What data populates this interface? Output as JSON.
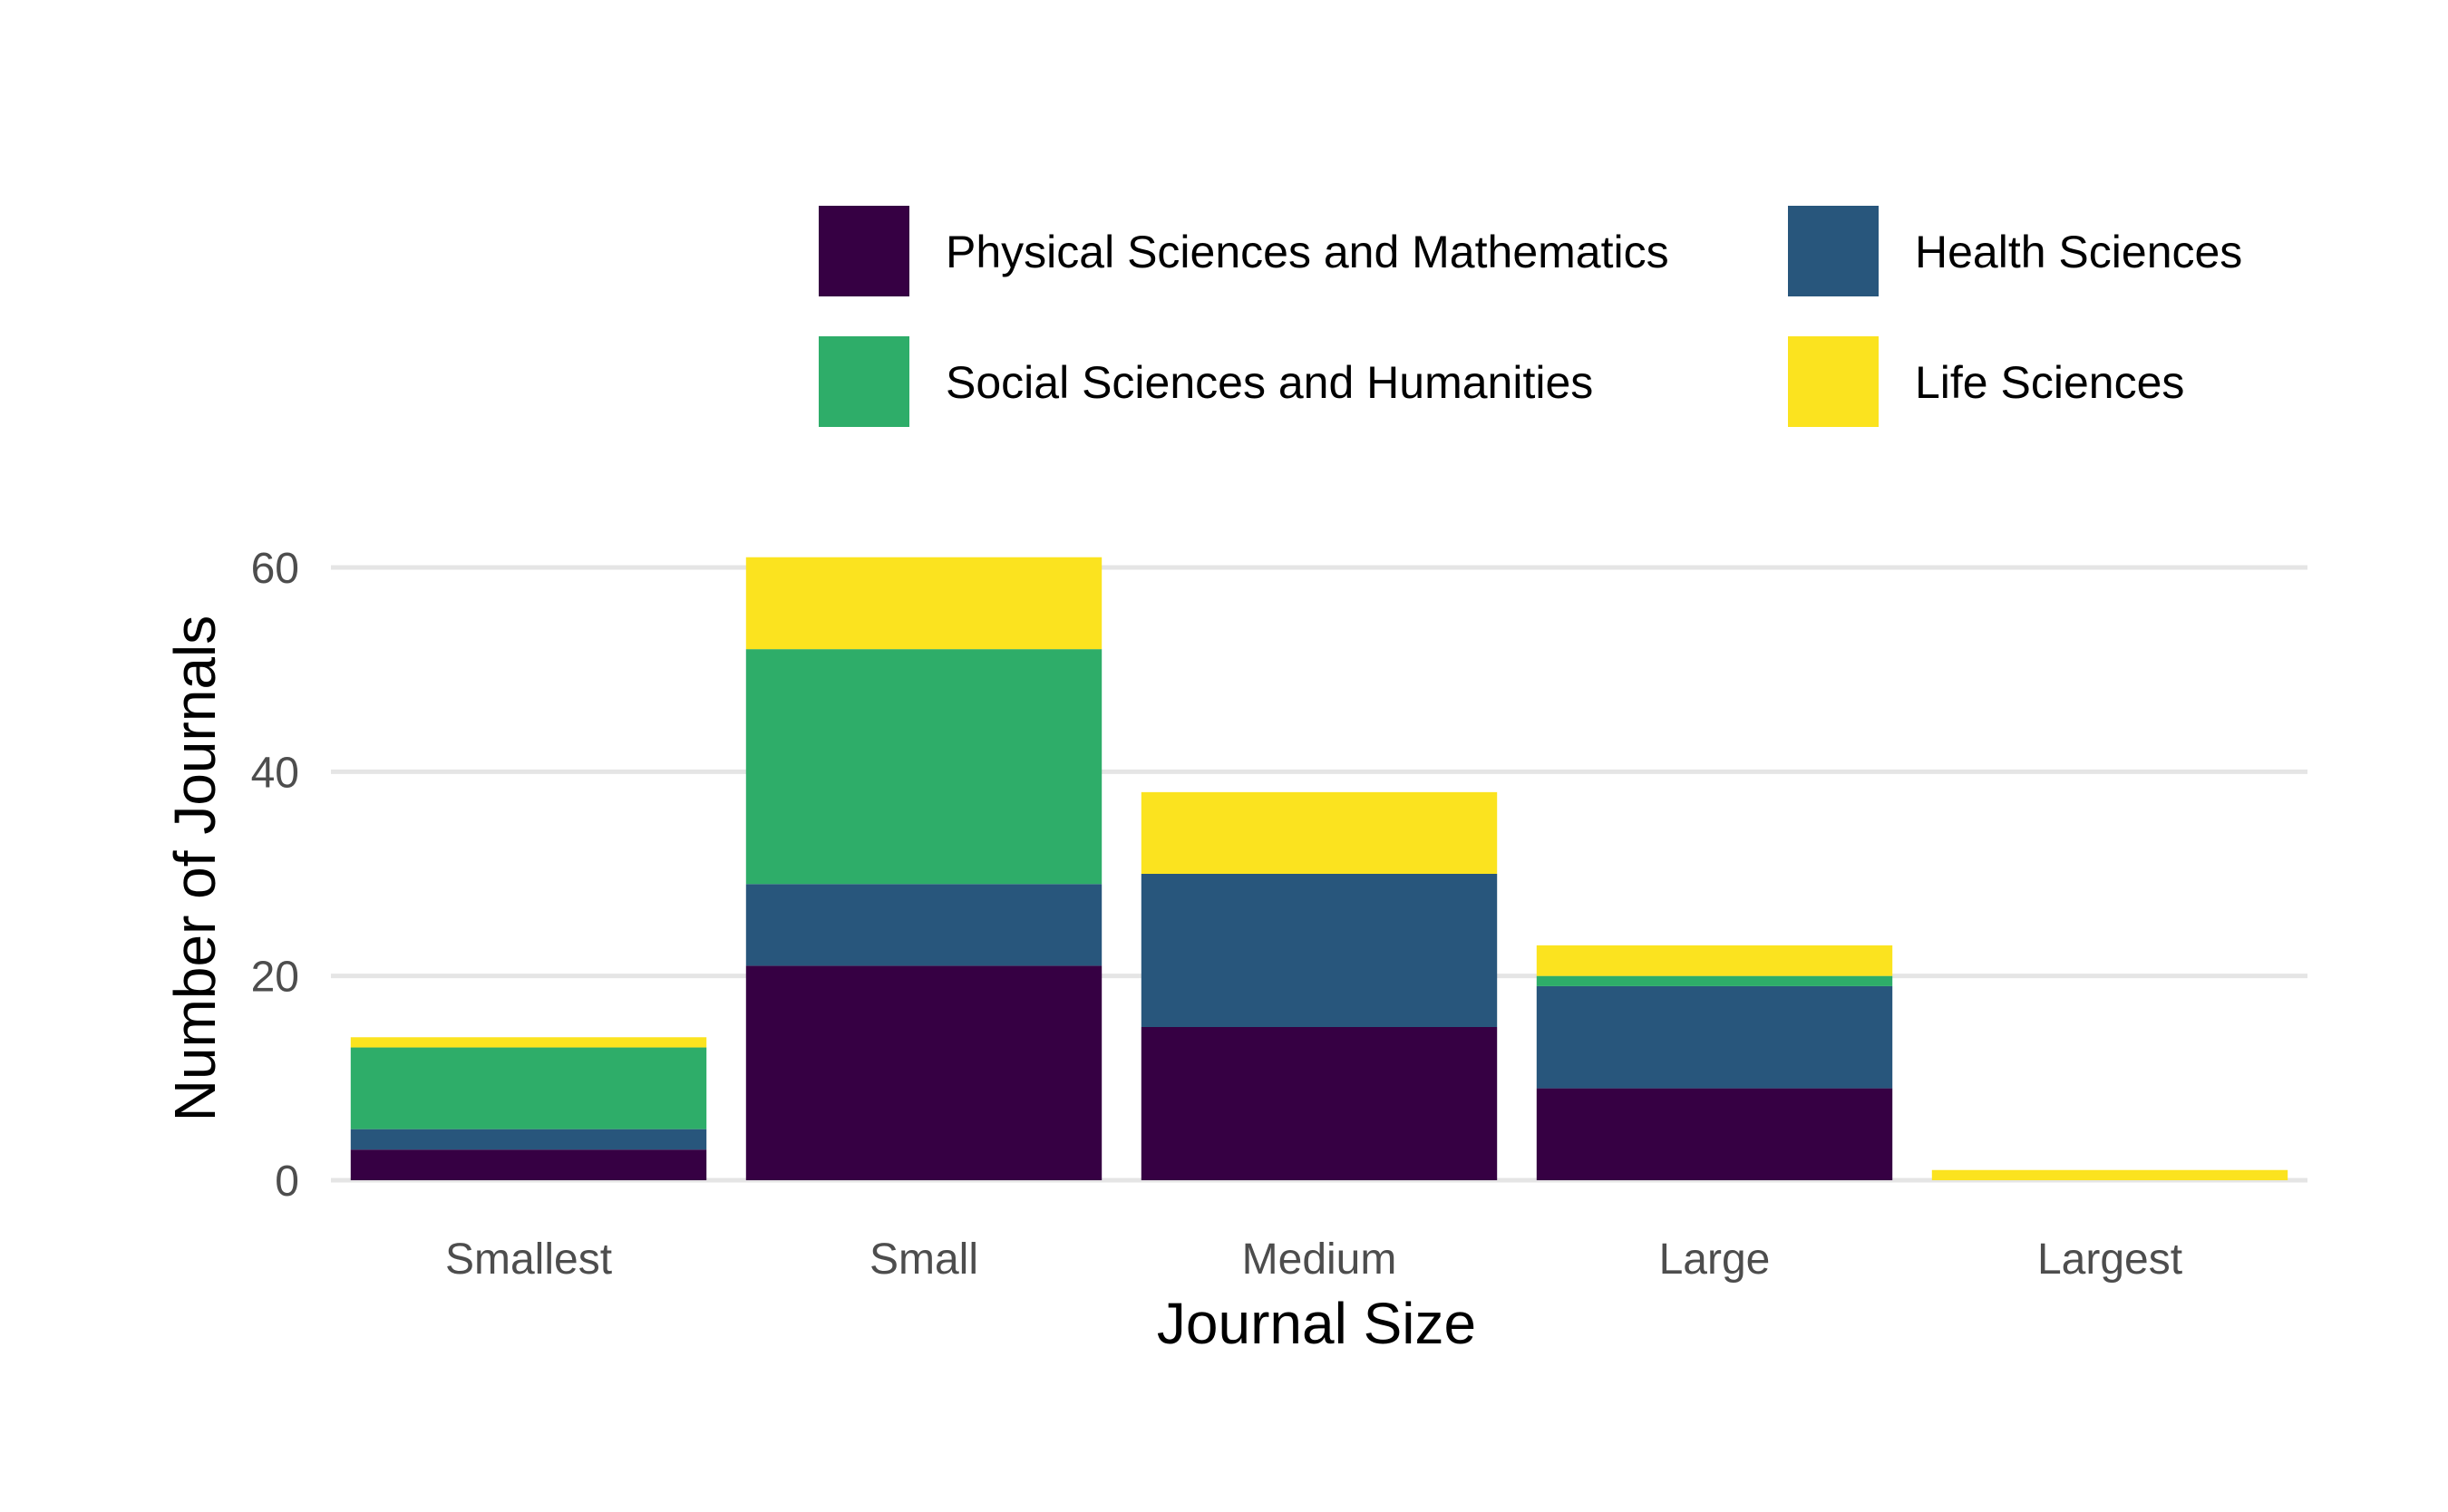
{
  "chart_data": {
    "type": "bar",
    "stacked": true,
    "title": "",
    "xlabel": "Journal Size",
    "ylabel": "Number of Journals",
    "categories": [
      "Smallest",
      "Small",
      "Medium",
      "Large",
      "Largest"
    ],
    "ylim": [
      0,
      65
    ],
    "yticks": [
      0,
      20,
      40,
      60
    ],
    "grid": "horizontal",
    "legend_position": "top",
    "series": [
      {
        "name": "Physical Sciences and Mathematics",
        "color": "#360043",
        "values": [
          3,
          21,
          15,
          9,
          0
        ]
      },
      {
        "name": "Health Sciences",
        "color": "#28567c",
        "values": [
          2,
          8,
          15,
          10,
          0
        ]
      },
      {
        "name": "Social Sciences and Humanities",
        "color": "#2ead69",
        "values": [
          8,
          23,
          0,
          1,
          0
        ]
      },
      {
        "name": "Life Sciences",
        "color": "#fbe31f",
        "values": [
          1,
          9,
          8,
          3,
          1
        ]
      }
    ],
    "legend_order": [
      0,
      1,
      2,
      3
    ]
  }
}
